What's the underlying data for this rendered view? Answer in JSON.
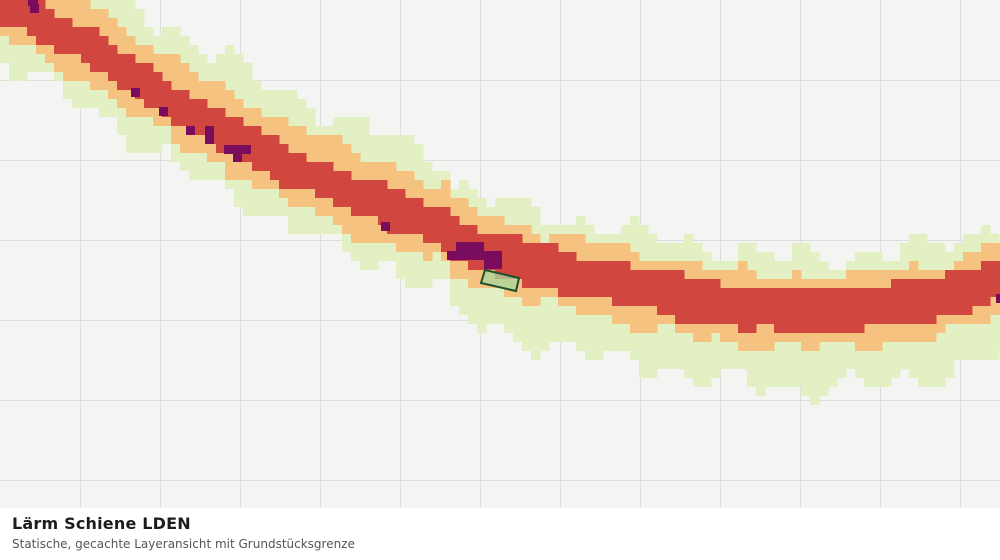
{
  "caption": {
    "title": "Lärm Schiene LDEN",
    "subtitle": "Statische, gecachte Layeransicht mit Grundstücksgrenze"
  },
  "map": {
    "background_color": "#f4f5f3",
    "grid_color": "#dcdedb",
    "noise_classes": [
      {
        "class": "lowest",
        "color": "#e2f0c4"
      },
      {
        "class": "low",
        "color": "#f5c27f"
      },
      {
        "class": "high",
        "color": "#d1463f"
      },
      {
        "class": "highest",
        "color": "#7a0c5e"
      }
    ],
    "parcel": {
      "fill": "#a8d8a0",
      "stroke": "#1f4f2a"
    }
  }
}
